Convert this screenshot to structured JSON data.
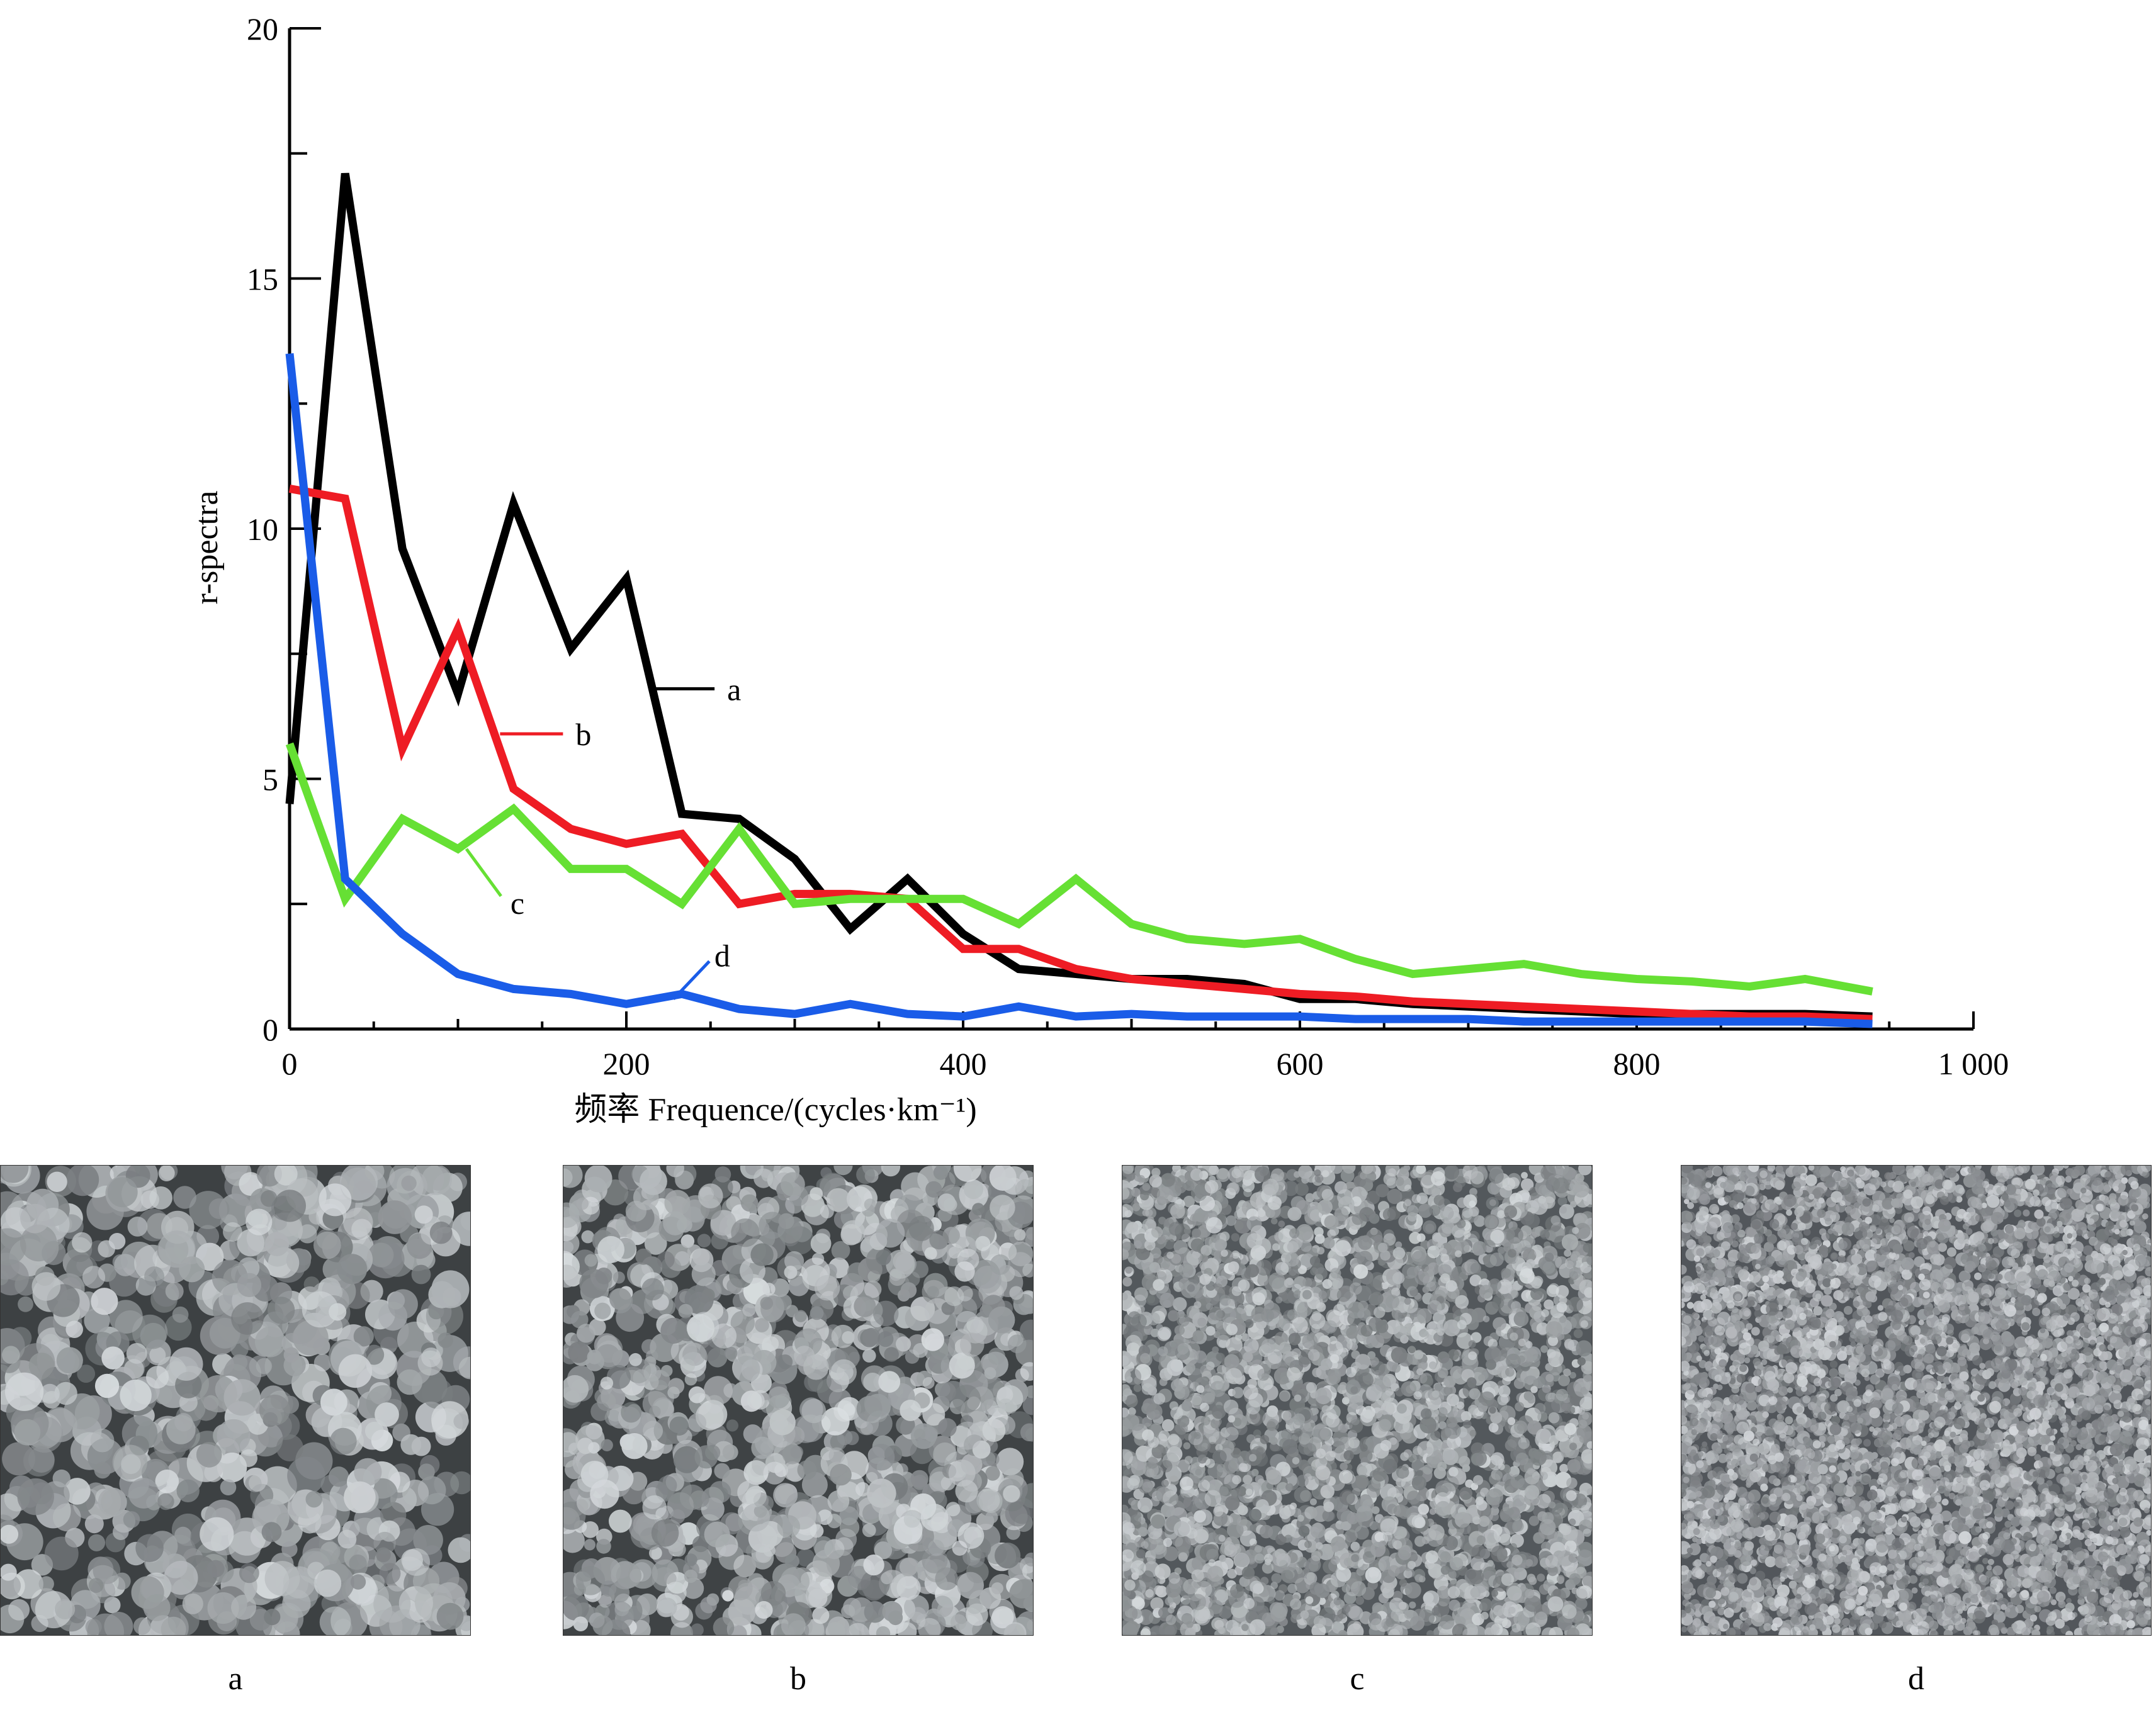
{
  "chart_data": {
    "type": "line",
    "xlabel": "频率 Frequence/(cycles·km⁻¹)",
    "ylabel": "r-spectra",
    "xlim": [
      0,
      1000
    ],
    "ylim": [
      0,
      20
    ],
    "x_ticks": [
      0,
      200,
      400,
      600,
      800,
      1000
    ],
    "x_tick_labels": [
      "0",
      "200",
      "400",
      "600",
      "800",
      "1 000"
    ],
    "y_ticks": [
      0,
      5,
      10,
      15,
      20
    ],
    "y_tick_labels": [
      "0",
      "5",
      "10",
      "15",
      "20"
    ],
    "grid": false,
    "legend": "inline labels",
    "series": [
      {
        "name": "a",
        "color": "#000000",
        "label_anchor": [
          215,
          6.8
        ],
        "x": [
          0,
          33,
          67,
          100,
          133,
          167,
          200,
          233,
          267,
          300,
          333,
          367,
          400,
          433,
          467,
          500,
          533,
          567,
          600,
          633,
          667,
          700,
          733,
          767,
          800,
          833,
          867,
          900,
          940
        ],
        "y": [
          4.5,
          17.1,
          9.6,
          6.7,
          10.5,
          7.6,
          9.0,
          4.3,
          4.2,
          3.4,
          2.0,
          3.0,
          1.9,
          1.2,
          1.1,
          1.0,
          1.0,
          0.9,
          0.6,
          0.6,
          0.5,
          0.45,
          0.4,
          0.35,
          0.3,
          0.3,
          0.3,
          0.3,
          0.25
        ]
      },
      {
        "name": "b",
        "color": "#ee1c24",
        "label_anchor": [
          125,
          5.9
        ],
        "x": [
          0,
          33,
          67,
          100,
          133,
          167,
          200,
          233,
          267,
          300,
          333,
          367,
          400,
          433,
          467,
          500,
          533,
          567,
          600,
          633,
          667,
          700,
          733,
          767,
          800,
          833,
          867,
          900,
          940
        ],
        "y": [
          10.8,
          10.6,
          5.6,
          8.0,
          4.8,
          4.0,
          3.7,
          3.9,
          2.5,
          2.7,
          2.7,
          2.6,
          1.6,
          1.6,
          1.2,
          1.0,
          0.9,
          0.8,
          0.7,
          0.65,
          0.55,
          0.5,
          0.45,
          0.4,
          0.35,
          0.3,
          0.25,
          0.25,
          0.2
        ]
      },
      {
        "name": "c",
        "color": "#66e034",
        "label_anchor": [
          105,
          3.6
        ],
        "x": [
          0,
          33,
          67,
          100,
          133,
          167,
          200,
          233,
          267,
          300,
          333,
          367,
          400,
          433,
          467,
          500,
          533,
          567,
          600,
          633,
          667,
          700,
          733,
          767,
          800,
          833,
          867,
          900,
          940
        ],
        "y": [
          5.7,
          2.6,
          4.2,
          3.6,
          4.4,
          3.2,
          3.2,
          2.5,
          4.0,
          2.5,
          2.6,
          2.6,
          2.6,
          2.1,
          3.0,
          2.1,
          1.8,
          1.7,
          1.8,
          1.4,
          1.1,
          1.2,
          1.3,
          1.1,
          1.0,
          0.95,
          0.85,
          1.0,
          0.75
        ]
      },
      {
        "name": "d",
        "color": "#1a5ce8",
        "label_anchor": [
          228,
          0.6
        ],
        "x": [
          0,
          33,
          67,
          100,
          133,
          167,
          200,
          233,
          267,
          300,
          333,
          367,
          400,
          433,
          467,
          500,
          533,
          567,
          600,
          633,
          667,
          700,
          733,
          767,
          800,
          833,
          867,
          900,
          940
        ],
        "y": [
          13.5,
          3.0,
          1.9,
          1.1,
          0.8,
          0.7,
          0.5,
          0.7,
          0.4,
          0.3,
          0.5,
          0.3,
          0.25,
          0.45,
          0.25,
          0.3,
          0.25,
          0.25,
          0.25,
          0.2,
          0.2,
          0.2,
          0.15,
          0.15,
          0.15,
          0.15,
          0.15,
          0.15,
          0.1
        ]
      }
    ]
  },
  "panels": [
    {
      "caption": "a",
      "tone": "#8c9296"
    },
    {
      "caption": "b",
      "tone": "#9aa0a3"
    },
    {
      "caption": "c",
      "tone": "#7a7f82"
    },
    {
      "caption": "d",
      "tone": "#6f7478"
    }
  ]
}
